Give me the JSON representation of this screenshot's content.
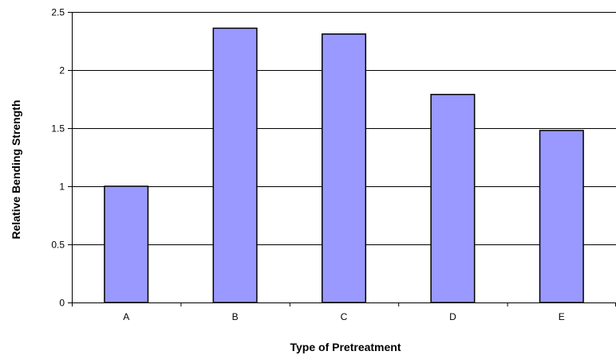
{
  "chart_data": {
    "type": "bar",
    "title": "",
    "xlabel": "Type of Pretreatment",
    "ylabel": "Relative Bending Strength",
    "categories": [
      "A",
      "B",
      "C",
      "D",
      "E"
    ],
    "values": [
      1.0,
      2.36,
      2.31,
      1.79,
      1.48
    ],
    "ylim": [
      0,
      2.5
    ],
    "yticks": [
      "0",
      "0.5",
      "1",
      "1.5",
      "2",
      "2.5"
    ],
    "grid": true,
    "legend": "none",
    "colors": {
      "bar_fill": "#9999ff",
      "bar_stroke": "#000000",
      "grid": "#000000",
      "axis": "#000000"
    }
  }
}
